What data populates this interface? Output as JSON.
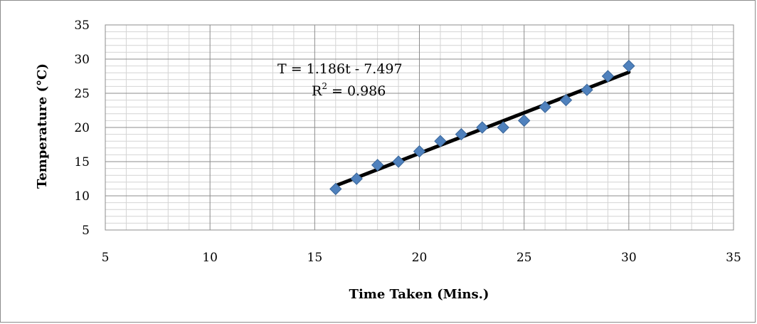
{
  "chart_data": {
    "type": "scatter",
    "title": "",
    "xlabel": "Time Taken (Mins.)",
    "ylabel": "Temperature (°C)",
    "xlim": [
      5,
      35
    ],
    "ylim": [
      5,
      35
    ],
    "x_ticks": [
      "5",
      "10",
      "15",
      "20",
      "25",
      "30",
      "35"
    ],
    "y_ticks": [
      "5",
      "10",
      "15",
      "20",
      "25",
      "30",
      "35"
    ],
    "grid": true,
    "marker_color": "#4f81bd",
    "trendline_color": "#000000",
    "series": [
      {
        "x": [
          16,
          17,
          18,
          19,
          20,
          21,
          22,
          23,
          24,
          25,
          26,
          27,
          28,
          29,
          30
        ],
        "y": [
          11,
          12.5,
          14.5,
          15,
          16.5,
          18,
          19,
          20,
          20,
          21,
          23,
          24,
          25.5,
          27.5,
          29
        ]
      }
    ],
    "trendline": {
      "slope": 1.186,
      "intercept": -7.497,
      "x_range": [
        16,
        30
      ]
    },
    "annotations": {
      "equation": "T = 1.186t - 7.497",
      "r_squared_prefix": "R",
      "r_squared_sup": "2",
      "r_squared_value": " = 0.986"
    }
  }
}
